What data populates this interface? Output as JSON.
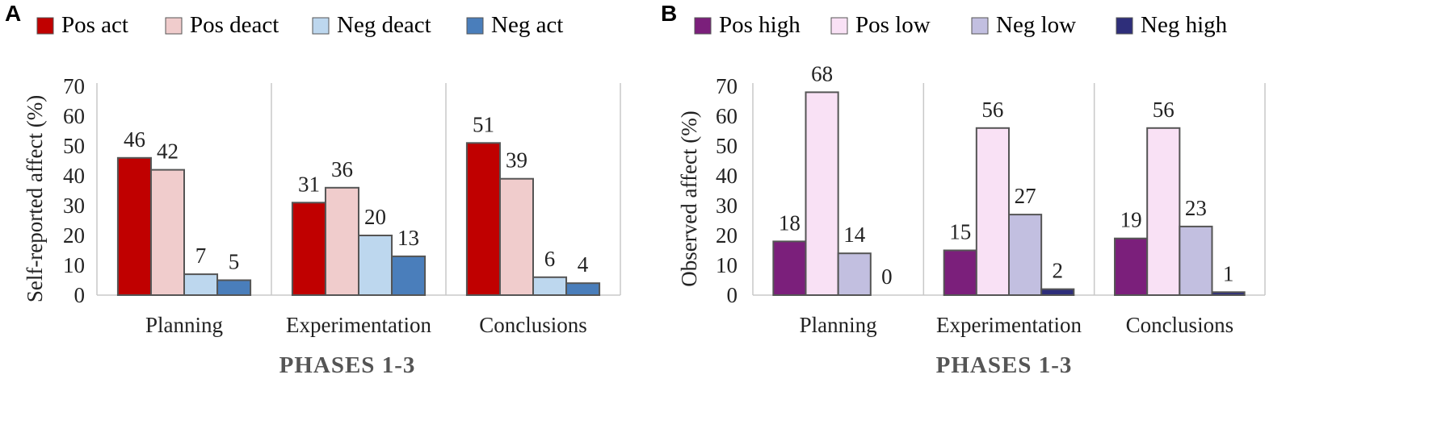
{
  "chart_data": [
    {
      "type": "bar",
      "panel": "A",
      "title": "",
      "categories": [
        "Planning",
        "Experimentation",
        "Conclusions"
      ],
      "series": [
        {
          "name": "Pos act",
          "color": "#C00000",
          "values": [
            46,
            31,
            51
          ]
        },
        {
          "name": "Pos deact",
          "color": "#F0CCCC",
          "values": [
            42,
            36,
            39
          ]
        },
        {
          "name": "Neg deact",
          "color": "#BDD7EE",
          "values": [
            7,
            20,
            6
          ]
        },
        {
          "name": "Neg act",
          "color": "#4A7EBB",
          "values": [
            5,
            13,
            4
          ]
        }
      ],
      "xlabel": "PHASES 1-3",
      "ylabel": "Self-reported affect (%)",
      "ylim": [
        0,
        70
      ],
      "yticks": [
        "0",
        "10",
        "20",
        "30",
        "40",
        "50",
        "60",
        "70"
      ],
      "legend_position": "top"
    },
    {
      "type": "bar",
      "panel": "B",
      "title": "",
      "categories": [
        "Planning",
        "Experimentation",
        "Conclusions"
      ],
      "series": [
        {
          "name": "Pos high",
          "color": "#7B1F7B",
          "values": [
            18,
            15,
            19
          ]
        },
        {
          "name": "Pos low",
          "color": "#F9E1F5",
          "values": [
            68,
            56,
            56
          ]
        },
        {
          "name": "Neg low",
          "color": "#C2BFE0",
          "values": [
            14,
            27,
            23
          ]
        },
        {
          "name": "Neg high",
          "color": "#2E2E7A",
          "values": [
            0,
            2,
            1
          ]
        }
      ],
      "xlabel": "PHASES 1-3",
      "ylabel": "Observed affect (%)",
      "ylim": [
        0,
        70
      ],
      "yticks": [
        "0",
        "10",
        "20",
        "30",
        "40",
        "50",
        "60",
        "70"
      ],
      "legend_position": "top"
    }
  ]
}
